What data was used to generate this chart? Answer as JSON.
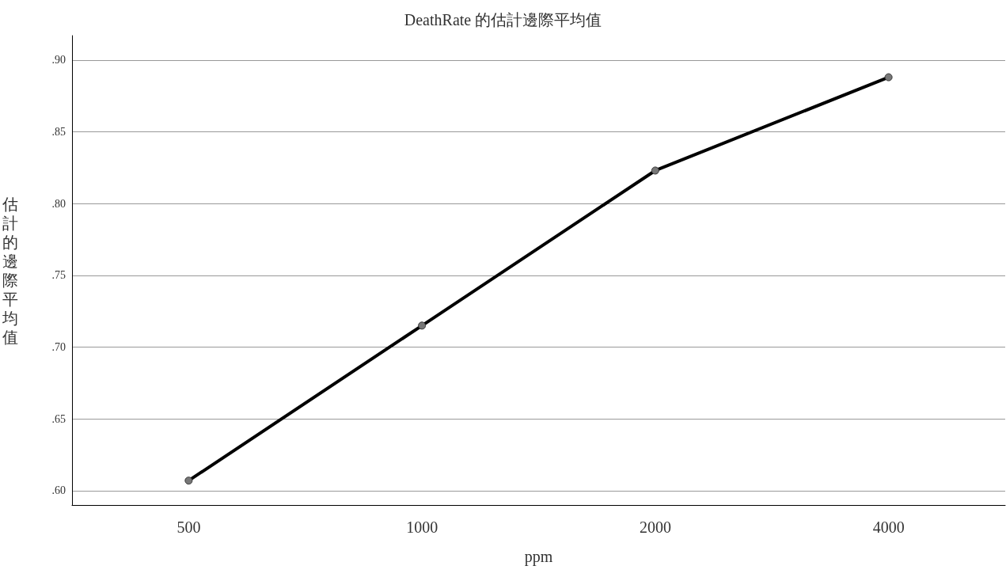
{
  "chart_data": {
    "type": "line",
    "title": "DeathRate 的估計邊際平均值",
    "xlabel": "ppm",
    "ylabel": "估計的邊際平均值",
    "categories": [
      "500",
      "1000",
      "2000",
      "4000"
    ],
    "series": [
      {
        "color": "#000000",
        "values": [
          0.607,
          0.715,
          0.823,
          0.888
        ]
      }
    ],
    "ylim": [
      0.59,
      0.917
    ],
    "yticks": [
      {
        "value": 0.6,
        "label": ".60"
      },
      {
        "value": 0.65,
        "label": ".65"
      },
      {
        "value": 0.7,
        "label": ".70"
      },
      {
        "value": 0.75,
        "label": ".75"
      },
      {
        "value": 0.8,
        "label": ".80"
      },
      {
        "value": 0.85,
        "label": ".85"
      },
      {
        "value": 0.9,
        "label": ".90"
      }
    ],
    "grid": "y",
    "marker": "circle",
    "line_style": "solid"
  }
}
